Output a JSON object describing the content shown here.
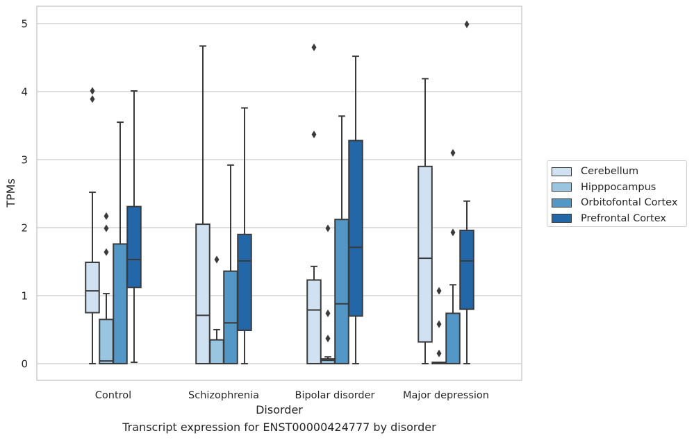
{
  "caption": "Transcript expression for ENST00000424777 by disorder",
  "chart_data": {
    "type": "boxplot",
    "title": "",
    "xlabel": "Disorder",
    "ylabel": "TPMs",
    "ylim": [
      -0.25,
      5.25
    ],
    "yticks": [
      0,
      1,
      2,
      3,
      4,
      5
    ],
    "grid": "horizontal",
    "legend_position": "right",
    "categories": [
      "Control",
      "Schizophrenia",
      "Bipolar disorder",
      "Major depression"
    ],
    "series": [
      {
        "name": "Cerebellum",
        "color": "#d0e1f2",
        "boxes": [
          {
            "whislo": 0.0,
            "q1": 0.75,
            "med": 1.07,
            "q3": 1.49,
            "whishi": 2.52,
            "fliers": [
              3.89,
              4.01
            ]
          },
          {
            "whislo": 0.0,
            "q1": 0.0,
            "med": 0.71,
            "q3": 2.05,
            "whishi": 4.67,
            "fliers": []
          },
          {
            "whislo": 0.0,
            "q1": 0.0,
            "med": 0.79,
            "q3": 1.23,
            "whishi": 1.43,
            "fliers": [
              3.37,
              4.65
            ]
          },
          {
            "whislo": 0.0,
            "q1": 0.32,
            "med": 1.55,
            "q3": 2.9,
            "whishi": 4.19,
            "fliers": []
          }
        ]
      },
      {
        "name": "Hipppocampus",
        "color": "#99c5e0",
        "boxes": [
          {
            "whislo": 0.0,
            "q1": 0.0,
            "med": 0.04,
            "q3": 0.65,
            "whishi": 1.03,
            "fliers": [
              1.64,
              1.99,
              2.17
            ]
          },
          {
            "whislo": 0.0,
            "q1": 0.0,
            "med": 0.0,
            "q3": 0.35,
            "whishi": 0.5,
            "fliers": [
              1.53
            ]
          },
          {
            "whislo": 0.0,
            "q1": 0.0,
            "med": 0.05,
            "q3": 0.07,
            "whishi": 0.1,
            "fliers": [
              0.37,
              0.74,
              1.99
            ]
          },
          {
            "whislo": 0.0,
            "q1": 0.0,
            "med": 0.01,
            "q3": 0.02,
            "whishi": 0.02,
            "fliers": [
              0.15,
              0.58,
              1.07
            ]
          }
        ]
      },
      {
        "name": "Orbitofontal Cortex",
        "color": "#5297c6",
        "boxes": [
          {
            "whislo": 0.0,
            "q1": 0.0,
            "med": 0.0,
            "q3": 1.76,
            "whishi": 3.55,
            "fliers": []
          },
          {
            "whislo": 0.0,
            "q1": 0.0,
            "med": 0.6,
            "q3": 1.36,
            "whishi": 2.92,
            "fliers": []
          },
          {
            "whislo": 0.0,
            "q1": 0.0,
            "med": 0.88,
            "q3": 2.12,
            "whishi": 3.64,
            "fliers": []
          },
          {
            "whislo": 0.0,
            "q1": 0.0,
            "med": 0.0,
            "q3": 0.74,
            "whishi": 1.16,
            "fliers": [
              1.93,
              3.1
            ]
          }
        ]
      },
      {
        "name": "Prefrontal Cortex",
        "color": "#2467a8",
        "boxes": [
          {
            "whislo": 0.02,
            "q1": 1.12,
            "med": 1.53,
            "q3": 2.31,
            "whishi": 4.01,
            "fliers": []
          },
          {
            "whislo": 0.0,
            "q1": 0.49,
            "med": 1.51,
            "q3": 1.9,
            "whishi": 3.76,
            "fliers": []
          },
          {
            "whislo": 0.0,
            "q1": 0.7,
            "med": 1.71,
            "q3": 3.28,
            "whishi": 4.52,
            "fliers": []
          },
          {
            "whislo": 0.0,
            "q1": 0.8,
            "med": 1.51,
            "q3": 1.96,
            "whishi": 2.39,
            "fliers": [
              4.99
            ]
          }
        ]
      }
    ]
  }
}
